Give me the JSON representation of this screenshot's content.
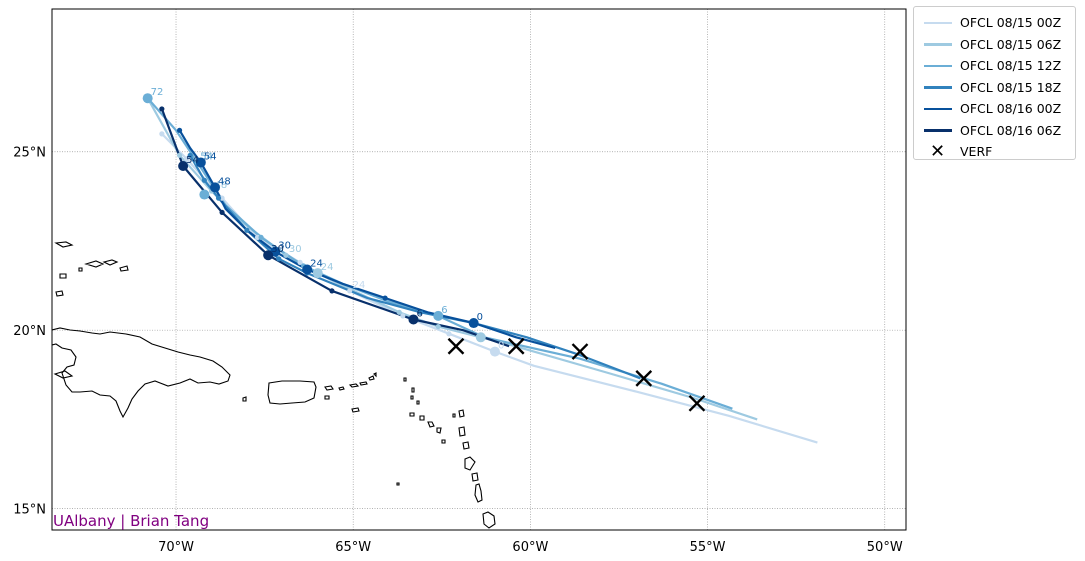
{
  "chart_data": {
    "type": "map",
    "extent": {
      "lon": [
        -73.5,
        -49.4
      ],
      "lat": [
        14.4,
        29.0
      ]
    },
    "grid": true,
    "xticks": [
      {
        "value": -70,
        "label": "70°W"
      },
      {
        "value": -65,
        "label": "65°W"
      },
      {
        "value": -60,
        "label": "60°W"
      },
      {
        "value": -55,
        "label": "55°W"
      },
      {
        "value": -50,
        "label": "50°W"
      }
    ],
    "yticks": [
      {
        "value": 15,
        "label": "15°N"
      },
      {
        "value": 20,
        "label": "20°N"
      },
      {
        "value": 25,
        "label": "25°N"
      }
    ],
    "legend_position": "outside right, top",
    "credit": "UAlbany | Brian Tang",
    "forecasts": [
      {
        "name": "OFCL 08/15 00Z",
        "color": "#c6dbef",
        "track": [
          [
            -51.9,
            16.85
          ],
          [
            -54.4,
            17.6
          ],
          [
            -57.1,
            18.3
          ],
          [
            -59.9,
            19.0
          ],
          [
            -61.0,
            19.4
          ],
          [
            -62.3,
            19.9
          ],
          [
            -63.6,
            20.4
          ],
          [
            -65.1,
            21.1
          ],
          [
            -66.5,
            21.9
          ],
          [
            -67.7,
            22.6
          ],
          [
            -68.7,
            23.7
          ],
          [
            -69.7,
            24.8
          ],
          [
            -70.4,
            25.5
          ]
        ],
        "markers": [
          {
            "lon": -61.0,
            "lat": 19.4,
            "tau": "0",
            "size": "big"
          },
          {
            "lon": -62.3,
            "lat": 19.9,
            "tau": "",
            "size": "small"
          },
          {
            "lon": -63.6,
            "lat": 20.4,
            "tau": "",
            "size": "small"
          },
          {
            "lon": -65.1,
            "lat": 21.1,
            "tau": "24",
            "size": "small"
          },
          {
            "lon": -66.5,
            "lat": 21.9,
            "tau": "",
            "size": "small"
          },
          {
            "lon": -67.7,
            "lat": 22.6,
            "tau": "",
            "size": "small"
          },
          {
            "lon": -68.7,
            "lat": 23.7,
            "tau": "",
            "size": "small"
          },
          {
            "lon": -69.7,
            "lat": 24.8,
            "tau": "",
            "size": "small"
          },
          {
            "lon": -70.4,
            "lat": 25.5,
            "tau": "",
            "size": "small"
          }
        ]
      },
      {
        "name": "OFCL 08/15 06Z",
        "color": "#9ecae1",
        "track": [
          [
            -53.6,
            17.5
          ],
          [
            -55.4,
            18.1
          ],
          [
            -57.8,
            18.8
          ],
          [
            -60.6,
            19.6
          ],
          [
            -61.4,
            19.8
          ],
          [
            -62.6,
            20.1
          ],
          [
            -63.7,
            20.5
          ],
          [
            -65.2,
            21.2
          ],
          [
            -66.0,
            21.6
          ],
          [
            -66.9,
            22.1
          ],
          [
            -68.1,
            23.0
          ],
          [
            -69.0,
            23.9
          ],
          [
            -69.9,
            24.9
          ],
          [
            -70.8,
            26.5
          ]
        ],
        "markers": [
          {
            "lon": -61.4,
            "lat": 19.8,
            "tau": "",
            "size": "big"
          },
          {
            "lon": -62.6,
            "lat": 20.1,
            "tau": "",
            "size": "small"
          },
          {
            "lon": -63.7,
            "lat": 20.5,
            "tau": "",
            "size": "small"
          },
          {
            "lon": -66.0,
            "lat": 21.6,
            "tau": "24",
            "size": "big"
          },
          {
            "lon": -66.9,
            "lat": 22.1,
            "tau": "30",
            "size": "small"
          },
          {
            "lon": -69.0,
            "lat": 23.9,
            "tau": "48",
            "size": "small"
          },
          {
            "lon": -69.9,
            "lat": 24.9,
            "tau": "",
            "size": "small"
          }
        ]
      },
      {
        "name": "OFCL 08/15 12Z",
        "color": "#6baed6",
        "track": [
          [
            -54.3,
            17.8
          ],
          [
            -56.3,
            18.5
          ],
          [
            -58.6,
            19.2
          ],
          [
            -61.3,
            19.8
          ],
          [
            -62.6,
            20.4
          ],
          [
            -64.0,
            20.8
          ],
          [
            -65.3,
            21.3
          ],
          [
            -66.4,
            21.8
          ],
          [
            -67.6,
            22.6
          ],
          [
            -68.6,
            23.5
          ],
          [
            -69.4,
            24.7
          ],
          [
            -70.0,
            25.6
          ],
          [
            -70.8,
            26.5
          ]
        ],
        "markers": [
          {
            "lon": -62.6,
            "lat": 20.4,
            "tau": "6",
            "size": "big"
          },
          {
            "lon": -66.4,
            "lat": 21.8,
            "tau": "",
            "size": "small"
          },
          {
            "lon": -67.6,
            "lat": 22.6,
            "tau": "",
            "size": "small"
          },
          {
            "lon": -69.2,
            "lat": 23.8,
            "tau": "",
            "size": "big"
          },
          {
            "lon": -69.4,
            "lat": 24.7,
            "tau": "54",
            "size": "small"
          },
          {
            "lon": -70.8,
            "lat": 26.5,
            "tau": "72",
            "size": "big"
          }
        ]
      },
      {
        "name": "OFCL 08/15 18Z",
        "color": "#3182bd",
        "track": [
          [
            -56.9,
            18.65
          ],
          [
            -58.6,
            19.3
          ],
          [
            -60.1,
            19.8
          ],
          [
            -61.6,
            20.2
          ],
          [
            -63.1,
            20.5
          ],
          [
            -64.6,
            20.9
          ],
          [
            -66.3,
            21.6
          ],
          [
            -67.1,
            22.0
          ],
          [
            -68.0,
            22.8
          ],
          [
            -68.8,
            23.7
          ],
          [
            -69.2,
            24.2
          ],
          [
            -69.6,
            24.9
          ]
        ],
        "markers": [
          {
            "lon": -61.6,
            "lat": 20.2,
            "tau": "",
            "size": "small"
          },
          {
            "lon": -63.1,
            "lat": 20.5,
            "tau": "",
            "size": "small"
          },
          {
            "lon": -66.3,
            "lat": 21.6,
            "tau": "",
            "size": "small"
          },
          {
            "lon": -67.1,
            "lat": 22.0,
            "tau": "",
            "size": "small"
          },
          {
            "lon": -68.0,
            "lat": 22.8,
            "tau": "",
            "size": "small"
          },
          {
            "lon": -68.8,
            "lat": 23.7,
            "tau": "",
            "size": "small"
          },
          {
            "lon": -69.2,
            "lat": 24.2,
            "tau": "",
            "size": "small"
          },
          {
            "lon": -69.6,
            "lat": 24.9,
            "tau": "",
            "size": "small"
          }
        ]
      },
      {
        "name": "OFCL 08/16 00Z",
        "color": "#08519c",
        "track": [
          [
            -59.3,
            19.5
          ],
          [
            -60.4,
            19.8
          ],
          [
            -61.6,
            20.2
          ],
          [
            -62.9,
            20.5
          ],
          [
            -64.1,
            20.9
          ],
          [
            -65.3,
            21.3
          ],
          [
            -66.3,
            21.7
          ],
          [
            -67.2,
            22.2
          ],
          [
            -68.0,
            22.8
          ],
          [
            -68.6,
            23.4
          ],
          [
            -68.9,
            24.0
          ],
          [
            -69.3,
            24.7
          ],
          [
            -69.6,
            25.1
          ],
          [
            -69.9,
            25.6
          ]
        ],
        "markers": [
          {
            "lon": -61.6,
            "lat": 20.2,
            "tau": "0",
            "size": "big"
          },
          {
            "lon": -64.1,
            "lat": 20.9,
            "tau": "",
            "size": "small"
          },
          {
            "lon": -66.3,
            "lat": 21.7,
            "tau": "24",
            "size": "big"
          },
          {
            "lon": -67.2,
            "lat": 22.2,
            "tau": "30",
            "size": "big"
          },
          {
            "lon": -68.9,
            "lat": 24.0,
            "tau": "48",
            "size": "big"
          },
          {
            "lon": -69.3,
            "lat": 24.7,
            "tau": "54",
            "size": "big"
          },
          {
            "lon": -69.9,
            "lat": 25.6,
            "tau": "",
            "size": "small"
          }
        ]
      },
      {
        "name": "OFCL 08/16 06Z",
        "color": "#08306b",
        "track": [
          [
            -60.6,
            19.55
          ],
          [
            -61.9,
            20.0
          ],
          [
            -63.3,
            20.3
          ],
          [
            -65.6,
            21.1
          ],
          [
            -67.4,
            22.1
          ],
          [
            -68.7,
            23.3
          ],
          [
            -69.8,
            24.6
          ],
          [
            -70.4,
            26.2
          ]
        ],
        "markers": [
          {
            "lon": -63.3,
            "lat": 20.3,
            "tau": "6",
            "size": "big"
          },
          {
            "lon": -65.6,
            "lat": 21.1,
            "tau": "",
            "size": "small"
          },
          {
            "lon": -67.4,
            "lat": 22.1,
            "tau": "30",
            "size": "big"
          },
          {
            "lon": -68.7,
            "lat": 23.3,
            "tau": "",
            "size": "small"
          },
          {
            "lon": -69.8,
            "lat": 24.6,
            "tau": "54",
            "size": "big"
          },
          {
            "lon": -70.4,
            "lat": 26.2,
            "tau": "",
            "size": "small"
          }
        ]
      }
    ],
    "verification": {
      "name": "VERF",
      "color": "#000000",
      "points": [
        [
          -55.3,
          17.95
        ],
        [
          -56.8,
          18.65
        ],
        [
          -58.6,
          19.4
        ],
        [
          -60.4,
          19.55
        ],
        [
          -62.1,
          19.55
        ]
      ]
    }
  }
}
